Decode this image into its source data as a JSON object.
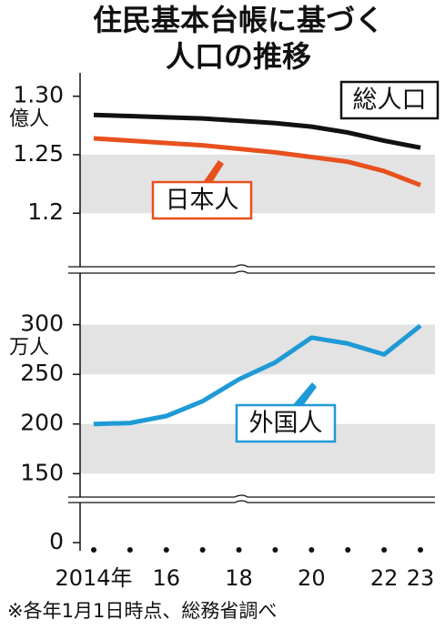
{
  "title": [
    "住民基本台帳に基づく",
    "人口の推移"
  ],
  "note": "※各年1月1日時点、総務省調べ",
  "chart_data": [
    {
      "type": "line",
      "unit": "億人",
      "ylim": [
        1.155,
        1.32
      ],
      "yticks": [
        1.2,
        1.25,
        {
          "value": 1.3,
          "label": "1.30"
        }
      ],
      "grid_bands": true,
      "series": [
        {
          "name": "総人口",
          "color": "#111111",
          "values": [
            1.284,
            1.283,
            1.282,
            1.281,
            1.279,
            1.277,
            1.274,
            1.269,
            1.262,
            1.256
          ]
        },
        {
          "name": "日本人",
          "color": "#e8501e",
          "values": [
            1.264,
            1.262,
            1.26,
            1.258,
            1.255,
            1.252,
            1.248,
            1.244,
            1.236,
            1.224
          ]
        }
      ]
    },
    {
      "type": "line",
      "unit": "万人",
      "categories": [
        "2014年",
        null,
        "16",
        null,
        "18",
        null,
        "20",
        null,
        "22",
        "23"
      ],
      "ylim": [
        120,
        340
      ],
      "yticks": [
        150,
        200,
        250,
        300
      ],
      "grid_bands": true,
      "below_break_tick": 0,
      "series": [
        {
          "name": "外国人",
          "color": "#1f9ad6",
          "values": [
            200,
            201,
            208,
            223,
            245,
            262,
            287,
            281,
            270,
            299
          ]
        }
      ]
    }
  ]
}
